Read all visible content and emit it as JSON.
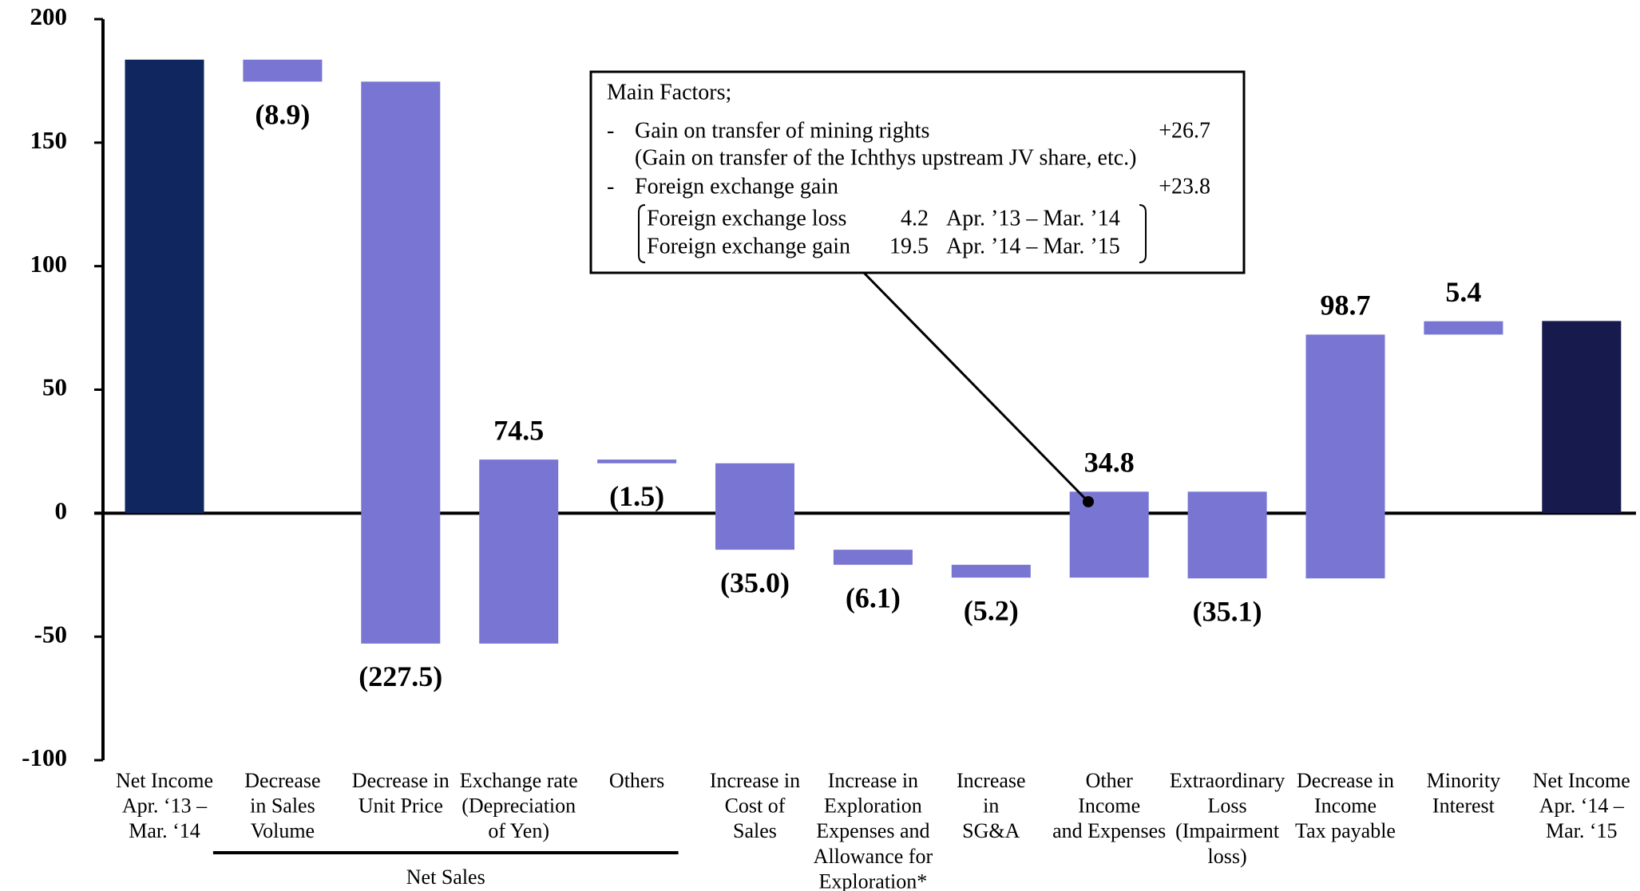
{
  "chart_data": {
    "type": "waterfall",
    "categories": [
      [
        "Net Income",
        "Apr. ‘13 –",
        "Mar. ‘14"
      ],
      [
        "Decrease",
        "in Sales",
        "Volume"
      ],
      [
        "Decrease in",
        "Unit Price"
      ],
      [
        "Exchange rate",
        "(Depreciation",
        "of Yen)"
      ],
      [
        "Others"
      ],
      [
        "Increase in",
        "Cost of",
        "Sales"
      ],
      [
        "Increase in",
        "Exploration",
        "Expenses and",
        "Allowance for",
        "Exploration*"
      ],
      [
        "Increase",
        "in",
        "SG&A"
      ],
      [
        "Other",
        "Income",
        "and Expenses"
      ],
      [
        "Extraordinary",
        "Loss",
        "(Impairment",
        "loss)"
      ],
      [
        "Decrease in",
        "Income",
        "Tax payable"
      ],
      [
        "Minority",
        "Interest"
      ],
      [
        "Net Income",
        "Apr. ‘14 –",
        "Mar. ‘15"
      ]
    ],
    "values": [
      183.6,
      -8.9,
      -227.5,
      74.5,
      -1.5,
      -35.0,
      -6.1,
      -5.2,
      34.8,
      -35.1,
      98.7,
      5.4,
      77.8
    ],
    "value_labels": [
      "183.6",
      "(8.9)",
      "(227.5)",
      "74.5",
      "(1.5)",
      "(35.0)",
      "(6.1)",
      "(5.2)",
      "34.8",
      "(35.1)",
      "98.7",
      "5.4",
      "77.8"
    ],
    "measure": [
      "total",
      "relative",
      "relative",
      "relative",
      "relative",
      "relative",
      "relative",
      "relative",
      "relative",
      "relative",
      "relative",
      "relative",
      "total"
    ],
    "color": "#7876d2",
    "total_colors": [
      "#0f265e",
      "#171a4c"
    ],
    "ylim": [
      -100,
      200
    ],
    "yticks": [
      -100,
      -50,
      0,
      50,
      100,
      150,
      200
    ],
    "groups": [
      {
        "label": "Net Sales",
        "from": 1,
        "to": 4
      }
    ],
    "annotation": {
      "title": "Main Factors;",
      "items": [
        {
          "bullet": "-",
          "text": "Gain on transfer of mining rights",
          "value": "+26.7",
          "note": "(Gain on transfer of the Ichthys upstream JV share, etc.)"
        },
        {
          "bullet": "-",
          "text": "Foreign exchange gain",
          "value": "+23.8",
          "details": [
            [
              "Foreign exchange loss",
              "4.2",
              "Apr. ’13 – Mar. ’14"
            ],
            [
              "Foreign exchange gain",
              "19.5",
              "Apr. ’14 – Mar. ’15"
            ]
          ]
        }
      ]
    }
  }
}
